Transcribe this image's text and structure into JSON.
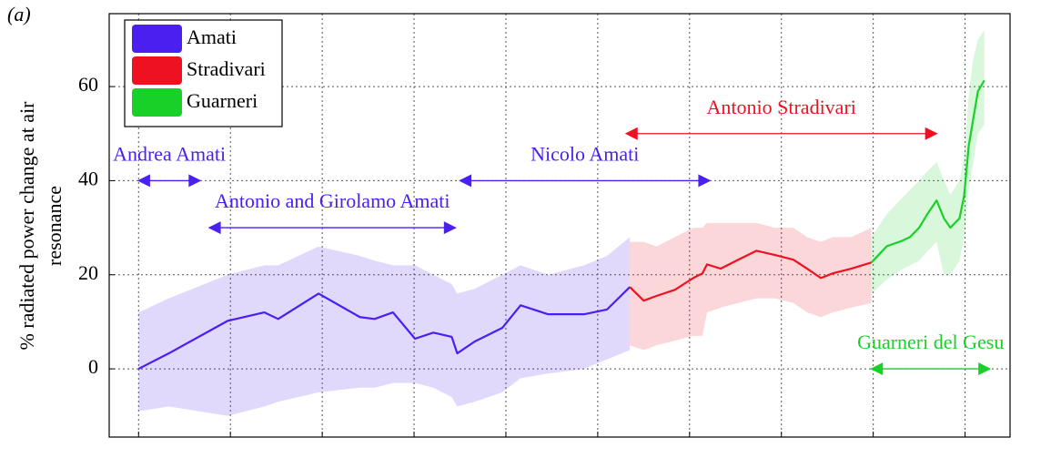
{
  "chart_data": {
    "type": "line",
    "panel_label": "(a)",
    "y_label": [
      "% radiated power change at air",
      "resonance"
    ],
    "xlim": [
      -0.32,
      9.49
    ],
    "xticks": [
      0,
      1,
      2,
      3,
      4,
      5,
      6,
      7,
      8,
      9
    ],
    "ylim": [
      -14.5,
      75.5
    ],
    "yticks": [
      0,
      20,
      40,
      60
    ],
    "grid": true,
    "legend": "upper left",
    "series": [
      {
        "name": "Amati",
        "color": "#4a1ff0",
        "x": [
          0,
          0.33,
          0.97,
          1.37,
          1.52,
          1.96,
          2.41,
          2.57,
          2.77,
          3.01,
          3.21,
          3.41,
          3.47,
          3.66,
          3.96,
          4.16,
          4.46,
          4.85,
          5.1,
          5.35
        ],
        "values": [
          0,
          3.3,
          10.2,
          12.0,
          10.6,
          16.0,
          11.0,
          10.6,
          12.0,
          6.4,
          7.7,
          6.8,
          3.3,
          5.8,
          8.7,
          13.5,
          11.6,
          11.6,
          12.6,
          17.4
        ],
        "upper": [
          12,
          15,
          20,
          22,
          22,
          26,
          24,
          23,
          22,
          22,
          20,
          18,
          16,
          17,
          20,
          22,
          20,
          22,
          24,
          28
        ],
        "lower": [
          -9,
          -8,
          -10,
          -8,
          -7,
          -5,
          -4,
          -4,
          -3,
          -3,
          -4,
          -6,
          -8,
          -7,
          -5,
          -2,
          -1,
          0,
          2,
          4
        ]
      },
      {
        "name": "Stradivari",
        "color": "#ee1122",
        "x": [
          5.35,
          5.5,
          5.64,
          5.84,
          6.04,
          6.14,
          6.19,
          6.34,
          6.53,
          6.73,
          6.93,
          7.13,
          7.28,
          7.43,
          7.56,
          7.76,
          7.98
        ],
        "values": [
          17.4,
          14.5,
          15.5,
          16.8,
          19.3,
          20.3,
          22.2,
          21.3,
          23.2,
          25.1,
          24.2,
          23.2,
          21.3,
          19.3,
          20.3,
          21.3,
          22.6
        ],
        "upper": [
          27,
          27,
          26,
          28,
          30,
          30,
          31,
          31,
          31,
          31,
          30,
          30,
          28,
          27,
          28,
          28,
          30
        ],
        "lower": [
          5,
          4,
          5,
          6,
          7,
          7,
          12,
          13,
          14,
          15,
          15,
          14,
          12,
          11,
          12,
          13,
          14
        ]
      },
      {
        "name": "Guarneri",
        "color": "#18d028",
        "x": [
          7.98,
          8.15,
          8.3,
          8.4,
          8.5,
          8.59,
          8.69,
          8.77,
          8.84,
          8.94,
          8.99,
          9.04,
          9.09,
          9.14,
          9.21
        ],
        "values": [
          22.6,
          26.1,
          27.1,
          28.0,
          30.0,
          32.9,
          35.8,
          32.0,
          30.0,
          32.0,
          36.8,
          47.4,
          53.2,
          59.0,
          61.3
        ],
        "upper": [
          28,
          33,
          36,
          38,
          40,
          42,
          44,
          40,
          37,
          40,
          45,
          58,
          66,
          70,
          72
        ],
        "lower": [
          16,
          19,
          21,
          22,
          23,
          25,
          27,
          20,
          20,
          23,
          28,
          38,
          44,
          50,
          52
        ]
      }
    ],
    "annotations": [
      {
        "text": "Andrea Amati",
        "color": "#4a1ff0",
        "x": [
          0,
          0.67
        ],
        "y": 40
      },
      {
        "text": "Antonio and Girolamo Amati",
        "color": "#4a1ff0",
        "x": [
          0.77,
          3.45
        ],
        "y": 30
      },
      {
        "text": "Nicolo Amati",
        "color": "#4a1ff0",
        "x": [
          3.5,
          6.22
        ],
        "y": 40
      },
      {
        "text": "Antonio Stradivari",
        "color": "#ee1122",
        "x": [
          5.31,
          8.69
        ],
        "y": 50
      },
      {
        "text": "Guarneri del Gesu",
        "color": "#18d028",
        "x": [
          7.98,
          9.27
        ],
        "y": 0
      }
    ]
  }
}
